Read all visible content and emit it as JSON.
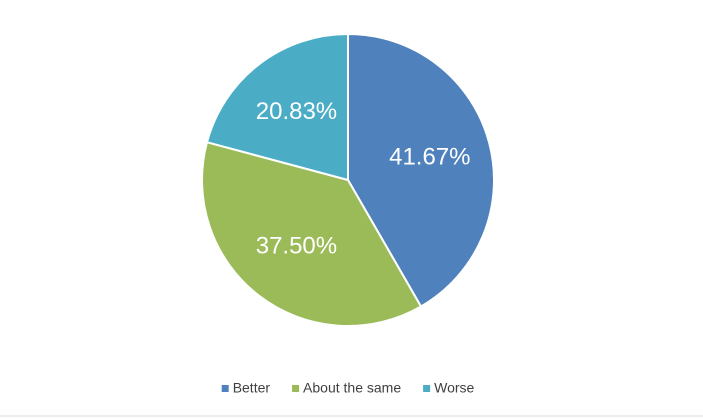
{
  "chart_data": {
    "type": "pie",
    "categories": [
      "Better",
      "About the same",
      "Worse"
    ],
    "values": [
      41.67,
      37.5,
      20.83
    ],
    "value_labels": [
      "41.67%",
      "37.50%",
      "20.83%"
    ],
    "colors": [
      "#4f81bd",
      "#9bbb59",
      "#4bacc6"
    ],
    "legend": "bottom"
  }
}
